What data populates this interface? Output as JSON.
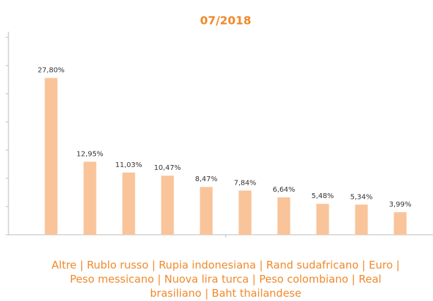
{
  "chart_data": {
    "type": "bar",
    "title": "07/2018",
    "categories": [
      null,
      null,
      null,
      null,
      null,
      null,
      null,
      null,
      null,
      null
    ],
    "values": [
      27.8,
      12.95,
      11.03,
      10.47,
      8.47,
      7.84,
      6.64,
      5.48,
      5.34,
      3.99
    ],
    "value_labels": [
      "27,80%",
      "12,95%",
      "11,03%",
      "10,47%",
      "8,47%",
      "7,84%",
      "6,64%",
      "5,48%",
      "5,34%",
      "3,99%"
    ],
    "color": "#f9c49a",
    "ylim": [
      0,
      35
    ],
    "yticks": [
      0,
      5,
      10,
      15,
      20,
      25,
      30,
      35
    ],
    "caption": "Altre | Rublo russo | Rupia indonesiana | Rand sudafricano | Euro | Peso messicano | Nuova lira turca | Peso colombiano | Real brasiliano | Baht thailandese"
  }
}
